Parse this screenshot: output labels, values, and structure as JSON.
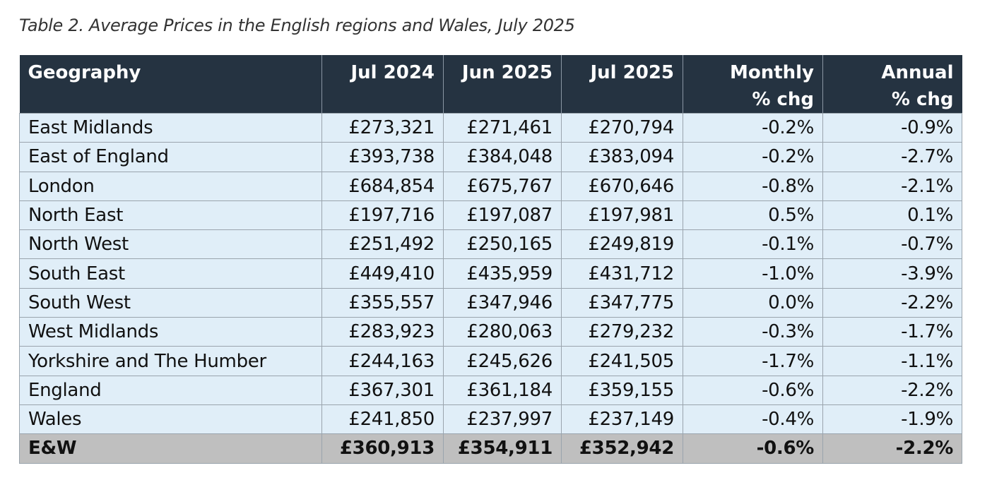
{
  "caption": "Table 2. Average Prices in the English regions and Wales, July 2025",
  "table": {
    "header": [
      "Geography",
      "Jul 2024",
      "Jun 2025",
      "Jul 2025",
      "Monthly\n% chg",
      "Annual\n% chg"
    ],
    "rows": [
      [
        "East Midlands",
        "£273,321",
        "£271,461",
        "£270,794",
        "-0.2%",
        "-0.9%"
      ],
      [
        "East of England",
        "£393,738",
        "£384,048",
        "£383,094",
        "-0.2%",
        "-2.7%"
      ],
      [
        "London",
        "£684,854",
        "£675,767",
        "£670,646",
        "-0.8%",
        "-2.1%"
      ],
      [
        "North East",
        "£197,716",
        "£197,087",
        "£197,981",
        "0.5%",
        "0.1%"
      ],
      [
        "North West",
        "£251,492",
        "£250,165",
        "£249,819",
        "-0.1%",
        "-0.7%"
      ],
      [
        "South East",
        "£449,410",
        "£435,959",
        "£431,712",
        "-1.0%",
        "-3.9%"
      ],
      [
        "South West",
        "£355,557",
        "£347,946",
        "£347,775",
        "0.0%",
        "-2.2%"
      ],
      [
        "West Midlands",
        "£283,923",
        "£280,063",
        "£279,232",
        "-0.3%",
        "-1.7%"
      ],
      [
        "Yorkshire and The Humber",
        "£244,163",
        "£245,626",
        "£241,505",
        "-1.7%",
        "-1.1%"
      ],
      [
        "England",
        "£367,301",
        "£361,184",
        "£359,155",
        "-0.6%",
        "-2.2%"
      ],
      [
        "Wales",
        "£241,850",
        "£237,997",
        "£237,149",
        "-0.4%",
        "-1.9%"
      ]
    ],
    "total": [
      "E&W",
      "£360,913",
      "£354,911",
      "£352,942",
      "-0.6%",
      "-2.2%"
    ]
  }
}
